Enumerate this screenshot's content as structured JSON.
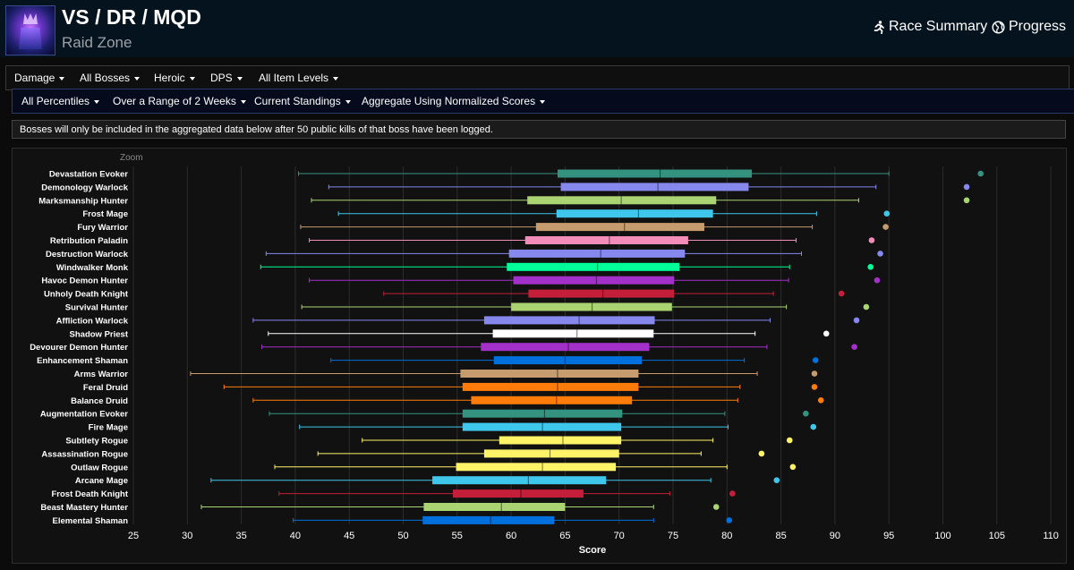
{
  "header": {
    "title": "VS / DR / MQD",
    "subtitle": "Raid Zone",
    "race_summary": "Race Summary",
    "progress": "Progress"
  },
  "filters_primary": [
    "Damage",
    "All Bosses",
    "Heroic",
    "DPS",
    "All Item Levels"
  ],
  "filters_secondary": [
    "All Percentiles",
    "Over a Range of 2 Weeks",
    "Current Standings",
    "Aggregate Using Normalized Scores"
  ],
  "notice": "Bosses will only be included in the aggregated data below after 50 public kills of that boss have been logged.",
  "chart_data": {
    "type": "boxplot",
    "zoom_label": "Zoom",
    "xlabel": "Score",
    "xlim": [
      25,
      112
    ],
    "ticks": [
      25,
      30,
      35,
      40,
      45,
      50,
      55,
      60,
      65,
      70,
      75,
      80,
      85,
      90,
      95,
      100,
      105,
      110
    ],
    "series": [
      {
        "name": "Devastation Evoker",
        "min": 40.3,
        "q1": 64.3,
        "median": 73.8,
        "q3": 82.3,
        "max": 95.0,
        "outlier": 103.5,
        "color": "#33937f"
      },
      {
        "name": "Demonology Warlock",
        "min": 43.1,
        "q1": 64.6,
        "median": 73.6,
        "q3": 82.0,
        "max": 93.8,
        "outlier": 102.2,
        "color": "#8788ee"
      },
      {
        "name": "Marksmanship Hunter",
        "min": 41.5,
        "q1": 61.5,
        "median": 70.2,
        "q3": 79.0,
        "max": 92.2,
        "outlier": 102.2,
        "color": "#aad372"
      },
      {
        "name": "Frost Mage",
        "min": 44.0,
        "q1": 64.2,
        "median": 71.8,
        "q3": 78.7,
        "max": 88.3,
        "outlier": 94.8,
        "color": "#3fc7eb"
      },
      {
        "name": "Fury Warrior",
        "min": 40.5,
        "q1": 62.3,
        "median": 70.5,
        "q3": 77.9,
        "max": 87.9,
        "outlier": 94.7,
        "color": "#c69b6d"
      },
      {
        "name": "Retribution Paladin",
        "min": 41.3,
        "q1": 61.3,
        "median": 69.1,
        "q3": 76.4,
        "max": 86.4,
        "outlier": 93.4,
        "color": "#f48cba"
      },
      {
        "name": "Destruction Warlock",
        "min": 37.3,
        "q1": 59.8,
        "median": 68.3,
        "q3": 76.1,
        "max": 86.9,
        "outlier": 94.2,
        "color": "#8788ee"
      },
      {
        "name": "Windwalker Monk",
        "min": 36.8,
        "q1": 59.6,
        "median": 68.0,
        "q3": 75.6,
        "max": 85.8,
        "outlier": 93.3,
        "color": "#00ff98"
      },
      {
        "name": "Havoc Demon Hunter",
        "min": 41.3,
        "q1": 60.2,
        "median": 67.9,
        "q3": 75.1,
        "max": 85.7,
        "outlier": 93.9,
        "color": "#a330c9"
      },
      {
        "name": "Unholy Death Knight",
        "min": 48.2,
        "q1": 61.6,
        "median": 68.5,
        "q3": 75.1,
        "max": 84.3,
        "outlier": 90.6,
        "color": "#c41e3a"
      },
      {
        "name": "Survival Hunter",
        "min": 40.6,
        "q1": 60.0,
        "median": 67.5,
        "q3": 74.9,
        "max": 85.5,
        "outlier": 92.9,
        "color": "#aad372"
      },
      {
        "name": "Affliction Warlock",
        "min": 36.1,
        "q1": 57.5,
        "median": 66.3,
        "q3": 73.3,
        "max": 84.0,
        "outlier": 92.0,
        "color": "#8788ee"
      },
      {
        "name": "Shadow Priest",
        "min": 37.5,
        "q1": 58.3,
        "median": 66.1,
        "q3": 73.2,
        "max": 82.6,
        "outlier": 89.2,
        "color": "#ffffff"
      },
      {
        "name": "Devourer Demon Hunter",
        "min": 36.9,
        "q1": 57.2,
        "median": 65.3,
        "q3": 72.8,
        "max": 83.7,
        "outlier": 91.8,
        "color": "#a330c9"
      },
      {
        "name": "Enhancement Shaman",
        "min": 43.3,
        "q1": 58.4,
        "median": 65.0,
        "q3": 72.1,
        "max": 81.6,
        "outlier": 88.2,
        "color": "#0070dd"
      },
      {
        "name": "Arms Warrior",
        "min": 30.3,
        "q1": 55.3,
        "median": 64.3,
        "q3": 71.8,
        "max": 82.8,
        "outlier": 88.1,
        "color": "#c69b6d"
      },
      {
        "name": "Feral Druid",
        "min": 33.4,
        "q1": 55.5,
        "median": 64.3,
        "q3": 71.8,
        "max": 81.2,
        "outlier": 88.1,
        "color": "#ff7c0a"
      },
      {
        "name": "Balance Druid",
        "min": 36.1,
        "q1": 56.3,
        "median": 64.2,
        "q3": 71.2,
        "max": 81.0,
        "outlier": 88.7,
        "color": "#ff7c0a"
      },
      {
        "name": "Augmentation Evoker",
        "min": 37.6,
        "q1": 55.5,
        "median": 63.1,
        "q3": 70.3,
        "max": 79.8,
        "outlier": 87.3,
        "color": "#33937f"
      },
      {
        "name": "Fire Mage",
        "min": 40.4,
        "q1": 55.5,
        "median": 62.9,
        "q3": 70.2,
        "max": 80.1,
        "outlier": 88.0,
        "color": "#3fc7eb"
      },
      {
        "name": "Subtlety Rogue",
        "min": 46.2,
        "q1": 58.9,
        "median": 64.8,
        "q3": 70.2,
        "max": 78.7,
        "outlier": 85.8,
        "color": "#fff468"
      },
      {
        "name": "Assassination Rogue",
        "min": 42.1,
        "q1": 57.5,
        "median": 63.6,
        "q3": 70.0,
        "max": 77.6,
        "outlier": 83.2,
        "color": "#fff468"
      },
      {
        "name": "Outlaw Rogue",
        "min": 38.1,
        "q1": 54.9,
        "median": 62.9,
        "q3": 69.7,
        "max": 80.0,
        "outlier": 86.1,
        "color": "#fff468"
      },
      {
        "name": "Arcane Mage",
        "min": 32.2,
        "q1": 52.7,
        "median": 61.6,
        "q3": 68.8,
        "max": 78.5,
        "outlier": 84.6,
        "color": "#3fc7eb"
      },
      {
        "name": "Frost Death Knight",
        "min": 38.5,
        "q1": 54.6,
        "median": 60.9,
        "q3": 66.7,
        "max": 74.7,
        "outlier": 80.5,
        "color": "#c41e3a"
      },
      {
        "name": "Beast Mastery Hunter",
        "min": 31.3,
        "q1": 51.9,
        "median": 59.1,
        "q3": 65.0,
        "max": 73.2,
        "outlier": 79.0,
        "color": "#aad372"
      },
      {
        "name": "Elemental Shaman",
        "min": 39.8,
        "q1": 51.8,
        "median": 58.1,
        "q3": 64.0,
        "max": 73.2,
        "outlier": 80.2,
        "color": "#0070dd"
      }
    ]
  }
}
